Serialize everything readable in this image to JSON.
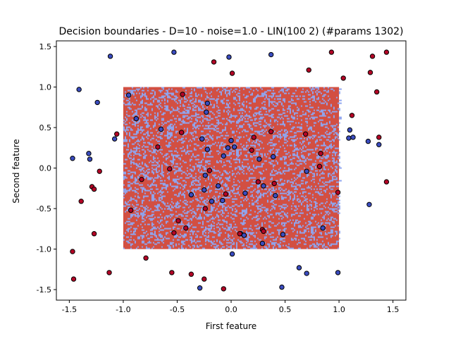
{
  "chart_data": {
    "type": "scatter",
    "title": "Decision boundaries - D=10 - noise=1.0 - LIN(100 2) (#params 1302)",
    "xlabel": "First feature",
    "ylabel": "Second feature",
    "xlim": [
      -1.62,
      1.62
    ],
    "ylim": [
      -1.63,
      1.57
    ],
    "xticks": [
      "-1.5",
      "-1.0",
      "-0.5",
      "0.0",
      "0.5",
      "1.0",
      "1.5"
    ],
    "yticks": [
      "-1.5",
      "-1.0",
      "-0.5",
      "0.0",
      "0.5",
      "1.0",
      "1.5"
    ],
    "grid": false,
    "legend": "none",
    "colors": {
      "class_0": "#3a4cc0",
      "class_1": "#b40426",
      "region_0": "#8fa6f0",
      "region_1": "#d24f42",
      "edge": "#000000"
    },
    "decision_region": {
      "x_range": [
        -1.0,
        1.0
      ],
      "y_range": [
        -1.0,
        1.0
      ],
      "pattern": "fine-grained mixed prediction, predominantly class_1 (red) with scattered class_0 (blue)"
    },
    "series": [
      {
        "class": "class_0",
        "points": [
          [
            -1.47,
            0.12
          ],
          [
            -1.41,
            0.97
          ],
          [
            -1.32,
            0.18
          ],
          [
            -1.31,
            0.11
          ],
          [
            -1.24,
            0.81
          ],
          [
            -1.12,
            1.38
          ],
          [
            -1.08,
            0.36
          ],
          [
            -0.95,
            0.9
          ],
          [
            -0.88,
            0.61
          ],
          [
            -0.65,
            0.48
          ],
          [
            -0.53,
            1.43
          ],
          [
            -0.29,
            -1.48
          ],
          [
            -0.27,
            0.36
          ],
          [
            -0.25,
            -0.27
          ],
          [
            -0.23,
            0.69
          ],
          [
            -0.22,
            0.8
          ],
          [
            -0.22,
            0.23
          ],
          [
            -0.24,
            -0.09
          ],
          [
            -0.18,
            -0.41
          ],
          [
            -0.08,
            -0.4
          ],
          [
            -0.07,
            0.15
          ],
          [
            -0.03,
            0.25
          ],
          [
            -0.02,
            1.37
          ],
          [
            0.0,
            0.34
          ],
          [
            0.03,
            0.26
          ],
          [
            0.01,
            -1.06
          ],
          [
            0.09,
            -0.81
          ],
          [
            0.12,
            -0.83
          ],
          [
            0.13,
            -0.31
          ],
          [
            0.26,
            0.11
          ],
          [
            0.29,
            -0.93
          ],
          [
            0.3,
            -0.22
          ],
          [
            0.37,
            1.4
          ],
          [
            0.39,
            0.14
          ],
          [
            0.41,
            -0.34
          ],
          [
            0.48,
            -0.82
          ],
          [
            0.47,
            -1.47
          ],
          [
            0.63,
            -1.23
          ],
          [
            0.7,
            -0.04
          ],
          [
            0.7,
            -1.3
          ],
          [
            0.85,
            -0.74
          ],
          [
            0.99,
            -1.29
          ],
          [
            1.09,
            0.37
          ],
          [
            1.1,
            0.47
          ],
          [
            1.13,
            0.38
          ],
          [
            1.27,
            0.33
          ],
          [
            1.28,
            -0.45
          ],
          [
            1.37,
            0.29
          ],
          [
            -0.12,
            -0.22
          ],
          [
            -0.37,
            -0.33
          ]
        ]
      },
      {
        "class": "class_1",
        "points": [
          [
            -1.47,
            -1.03
          ],
          [
            -1.46,
            -1.37
          ],
          [
            -1.39,
            -0.41
          ],
          [
            -1.29,
            -0.23
          ],
          [
            -1.27,
            -0.26
          ],
          [
            -1.27,
            -0.81
          ],
          [
            -1.22,
            -0.04
          ],
          [
            -1.13,
            -1.29
          ],
          [
            -1.06,
            0.42
          ],
          [
            -0.93,
            -0.52
          ],
          [
            -0.83,
            -0.14
          ],
          [
            -0.79,
            -1.11
          ],
          [
            -0.68,
            0.26
          ],
          [
            -0.57,
            -0.01
          ],
          [
            -0.53,
            -0.8
          ],
          [
            -0.49,
            -0.65
          ],
          [
            -0.46,
            0.44
          ],
          [
            -0.45,
            0.91
          ],
          [
            -0.42,
            -0.74
          ],
          [
            -0.37,
            -1.31
          ],
          [
            -0.25,
            -1.37
          ],
          [
            -0.24,
            -0.5
          ],
          [
            -0.2,
            -0.03
          ],
          [
            -0.16,
            1.31
          ],
          [
            -0.07,
            -1.49
          ],
          [
            -0.05,
            -0.32
          ],
          [
            0.01,
            1.17
          ],
          [
            0.19,
            0.22
          ],
          [
            0.21,
            0.38
          ],
          [
            0.25,
            -0.17
          ],
          [
            0.29,
            -0.76
          ],
          [
            0.3,
            -0.78
          ],
          [
            0.37,
            0.45
          ],
          [
            0.4,
            -0.19
          ],
          [
            0.69,
            0.42
          ],
          [
            0.72,
            1.21
          ],
          [
            0.82,
            0.02
          ],
          [
            0.83,
            0.18
          ],
          [
            0.93,
            1.43
          ],
          [
            0.99,
            -0.3
          ],
          [
            1.04,
            1.11
          ],
          [
            1.12,
            0.65
          ],
          [
            1.29,
            1.18
          ],
          [
            1.31,
            1.38
          ],
          [
            1.35,
            0.94
          ],
          [
            1.37,
            0.38
          ],
          [
            1.44,
            -0.17
          ],
          [
            1.44,
            1.43
          ],
          [
            -0.55,
            -1.29
          ],
          [
            0.08,
            -0.81
          ]
        ]
      }
    ]
  }
}
